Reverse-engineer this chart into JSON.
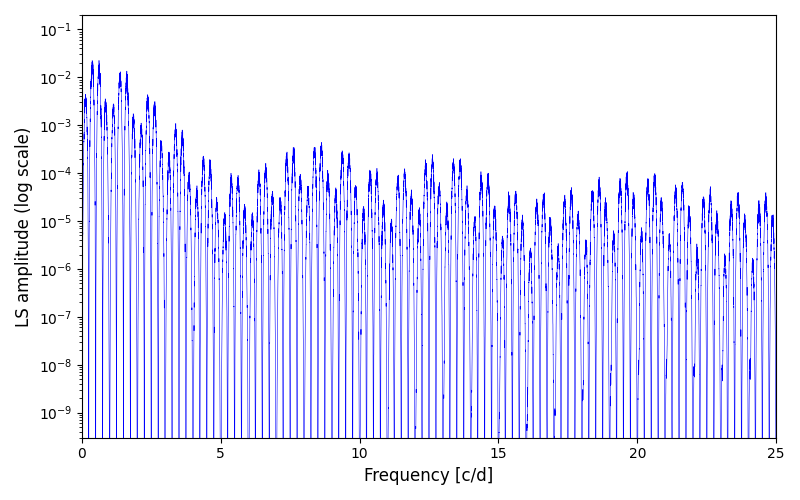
{
  "title": "",
  "xlabel": "Frequency [c/d]",
  "ylabel": "LS amplitude (log scale)",
  "xlim": [
    0,
    25
  ],
  "ylim": [
    3e-10,
    0.2
  ],
  "line_color": "blue",
  "background_color": "white",
  "figsize": [
    8.0,
    5.0
  ],
  "dpi": 100,
  "freq_max": 25.0,
  "n_points": 20000,
  "yscale": "log",
  "linewidth": 0.4
}
